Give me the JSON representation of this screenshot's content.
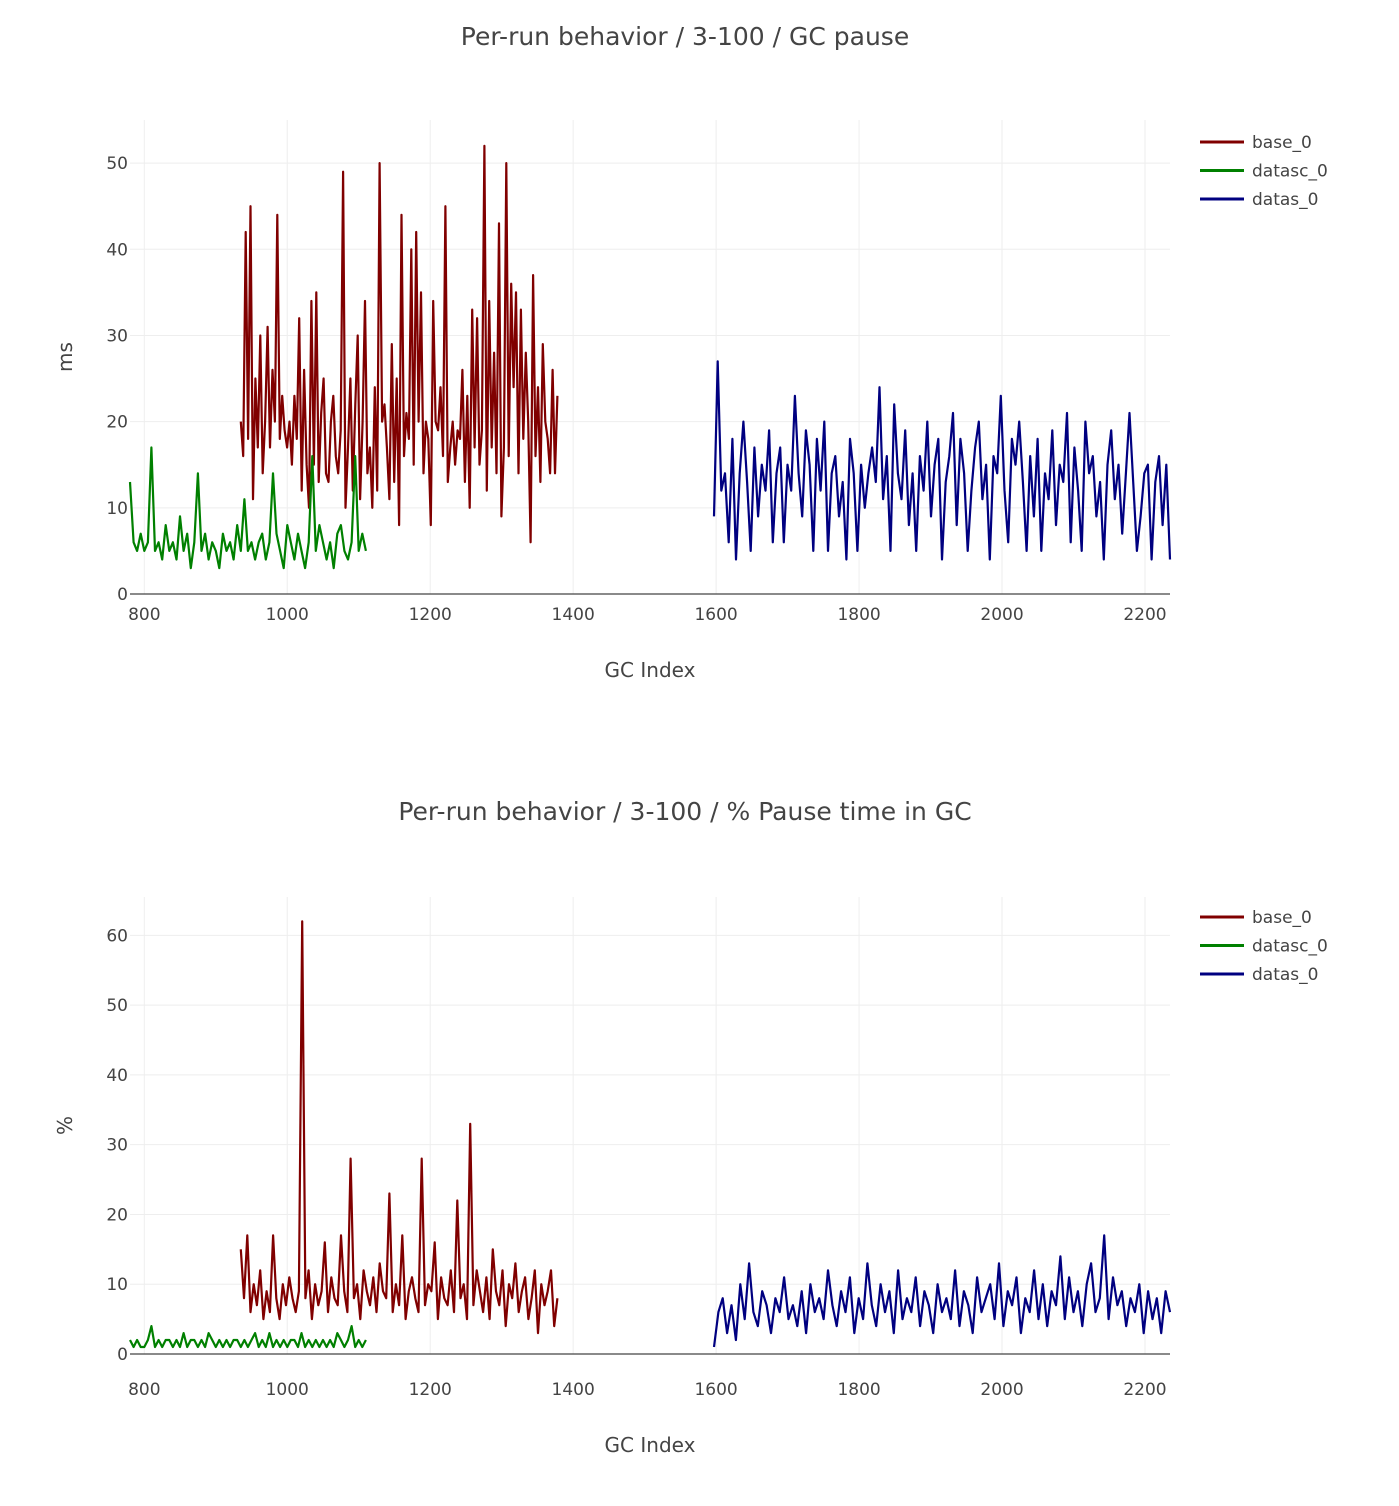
{
  "chart_data": [
    {
      "type": "line",
      "title": "Per-run behavior / 3-100 / GC pause",
      "xlabel": "GC Index",
      "ylabel": "ms",
      "xlim": [
        780,
        2235
      ],
      "ylim": [
        0,
        55
      ],
      "xticks": [
        800,
        1000,
        1200,
        1400,
        1600,
        1800,
        2000,
        2200
      ],
      "yticks": [
        0,
        10,
        20,
        30,
        40,
        50
      ],
      "grid": true,
      "legend_placement": "top-right",
      "series": [
        {
          "name": "base_0",
          "color": "#800000",
          "x_range": [
            935,
            1378
          ],
          "values": [
            20,
            16,
            42,
            18,
            45,
            11,
            25,
            17,
            30,
            14,
            20,
            31,
            17,
            26,
            20,
            44,
            18,
            23,
            19,
            17,
            20,
            15,
            23,
            18,
            32,
            12,
            26,
            15,
            10,
            34,
            15,
            35,
            13,
            21,
            25,
            14,
            13,
            20,
            23,
            16,
            14,
            19,
            49,
            10,
            17,
            25,
            12,
            22,
            30,
            11,
            20,
            34,
            14,
            17,
            10,
            24,
            12,
            50,
            20,
            22,
            17,
            11,
            29,
            13,
            25,
            8,
            44,
            16,
            21,
            18,
            40,
            15,
            42,
            20,
            35,
            14,
            20,
            18,
            8,
            34,
            20,
            19,
            24,
            16,
            45,
            13,
            17,
            20,
            15,
            19,
            18,
            26,
            13,
            23,
            10,
            33,
            17,
            32,
            15,
            19,
            52,
            12,
            34,
            17,
            28,
            14,
            43,
            9,
            17,
            50,
            16,
            36,
            24,
            35,
            14,
            33,
            18,
            28,
            20,
            6,
            37,
            16,
            24,
            13,
            29,
            20,
            18,
            14,
            26,
            14,
            23
          ]
        },
        {
          "name": "datasc_0",
          "color": "#008000",
          "x_range": [
            780,
            1110
          ],
          "values": [
            13,
            6,
            5,
            7,
            5,
            6,
            17,
            5,
            6,
            4,
            8,
            5,
            6,
            4,
            9,
            5,
            7,
            3,
            6,
            14,
            5,
            7,
            4,
            6,
            5,
            3,
            7,
            5,
            6,
            4,
            8,
            5,
            11,
            5,
            6,
            4,
            6,
            7,
            4,
            6,
            14,
            7,
            5,
            3,
            8,
            6,
            4,
            7,
            5,
            3,
            6,
            16,
            5,
            8,
            6,
            4,
            6,
            3,
            7,
            8,
            5,
            4,
            6,
            16,
            5,
            7,
            5
          ]
        },
        {
          "name": "datas_0",
          "color": "#000080",
          "x_range": [
            1597,
            2235
          ],
          "values": [
            9,
            27,
            12,
            14,
            6,
            18,
            4,
            14,
            20,
            13,
            5,
            17,
            9,
            15,
            12,
            19,
            6,
            14,
            17,
            6,
            15,
            12,
            23,
            14,
            9,
            19,
            15,
            5,
            18,
            12,
            20,
            5,
            14,
            16,
            9,
            13,
            4,
            18,
            14,
            5,
            15,
            10,
            14,
            17,
            13,
            24,
            11,
            16,
            5,
            22,
            14,
            11,
            19,
            8,
            14,
            5,
            16,
            12,
            20,
            9,
            15,
            18,
            4,
            13,
            16,
            21,
            8,
            18,
            14,
            5,
            12,
            17,
            20,
            11,
            15,
            4,
            16,
            14,
            23,
            12,
            6,
            18,
            15,
            20,
            13,
            5,
            16,
            9,
            18,
            5,
            14,
            11,
            19,
            8,
            15,
            13,
            21,
            6,
            17,
            12,
            5,
            20,
            14,
            16,
            9,
            13,
            4,
            15,
            19,
            11,
            15,
            7,
            14,
            21,
            13,
            5,
            9,
            14,
            15,
            4,
            13,
            16,
            8,
            15,
            4
          ]
        }
      ]
    },
    {
      "type": "line",
      "title": "Per-run behavior / 3-100 / % Pause time in GC",
      "xlabel": "GC Index",
      "ylabel": "%",
      "xlim": [
        780,
        2235
      ],
      "ylim": [
        0,
        65.5
      ],
      "xticks": [
        800,
        1000,
        1200,
        1400,
        1600,
        1800,
        2000,
        2200
      ],
      "yticks": [
        0,
        10,
        20,
        30,
        40,
        50,
        60
      ],
      "grid": true,
      "legend_placement": "top-right",
      "series": [
        {
          "name": "base_0",
          "color": "#800000",
          "x_range": [
            935,
            1378
          ],
          "values": [
            15,
            8,
            17,
            6,
            10,
            7,
            12,
            5,
            9,
            6,
            17,
            8,
            5,
            10,
            7,
            11,
            8,
            6,
            9,
            62,
            8,
            12,
            5,
            10,
            7,
            9,
            16,
            6,
            11,
            8,
            7,
            17,
            9,
            6,
            28,
            8,
            10,
            5,
            12,
            9,
            7,
            11,
            6,
            13,
            9,
            8,
            23,
            6,
            10,
            7,
            17,
            5,
            9,
            11,
            8,
            6,
            28,
            7,
            10,
            9,
            16,
            5,
            11,
            8,
            7,
            12,
            6,
            22,
            8,
            10,
            5,
            33,
            7,
            12,
            9,
            6,
            11,
            5,
            15,
            9,
            7,
            12,
            4,
            10,
            8,
            13,
            6,
            9,
            11,
            5,
            8,
            12,
            3,
            10,
            7,
            9,
            12,
            4,
            8
          ]
        },
        {
          "name": "datasc_0",
          "color": "#008000",
          "x_range": [
            780,
            1110
          ],
          "values": [
            2,
            1,
            2,
            1,
            1,
            2,
            4,
            1,
            2,
            1,
            2,
            2,
            1,
            2,
            1,
            3,
            1,
            2,
            2,
            1,
            2,
            1,
            3,
            2,
            1,
            2,
            1,
            2,
            1,
            2,
            2,
            1,
            2,
            1,
            2,
            3,
            1,
            2,
            1,
            3,
            1,
            2,
            1,
            2,
            1,
            2,
            2,
            1,
            3,
            1,
            2,
            1,
            2,
            1,
            2,
            1,
            2,
            1,
            3,
            2,
            1,
            2,
            4,
            1,
            2,
            1,
            2
          ]
        },
        {
          "name": "datas_0",
          "color": "#000080",
          "x_range": [
            1597,
            2235
          ],
          "values": [
            1,
            6,
            8,
            3,
            7,
            2,
            10,
            5,
            13,
            6,
            4,
            9,
            7,
            3,
            8,
            6,
            11,
            5,
            7,
            4,
            9,
            3,
            10,
            6,
            8,
            5,
            12,
            7,
            4,
            9,
            6,
            11,
            3,
            8,
            5,
            13,
            7,
            4,
            10,
            6,
            9,
            3,
            12,
            5,
            8,
            6,
            11,
            4,
            9,
            7,
            3,
            10,
            6,
            8,
            5,
            12,
            4,
            9,
            7,
            3,
            11,
            6,
            8,
            10,
            5,
            13,
            4,
            9,
            7,
            11,
            3,
            8,
            6,
            12,
            5,
            10,
            4,
            9,
            7,
            14,
            5,
            11,
            6,
            9,
            4,
            10,
            13,
            6,
            8,
            17,
            5,
            11,
            7,
            9,
            4,
            8,
            6,
            10,
            3,
            9,
            5,
            8,
            3,
            9,
            6
          ]
        }
      ]
    }
  ]
}
